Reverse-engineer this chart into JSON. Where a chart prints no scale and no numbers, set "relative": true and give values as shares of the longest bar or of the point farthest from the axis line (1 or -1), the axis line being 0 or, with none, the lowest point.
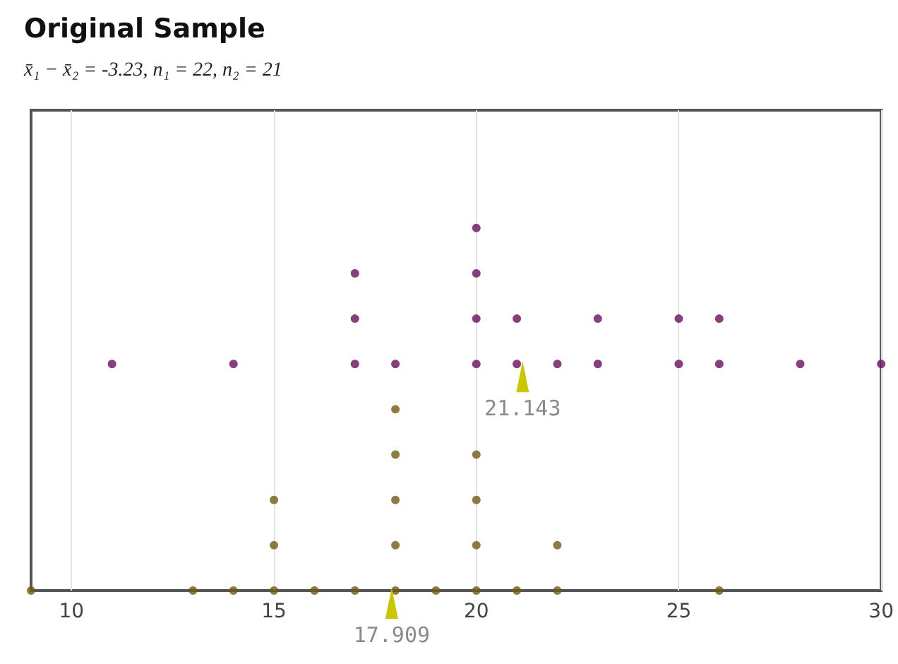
{
  "chart_data": {
    "type": "scatter",
    "title": "Original Sample",
    "subtitle": "x̄₁ − x̄₂ = -3.23, n₁ = 22, n₂ = 21",
    "relative": true,
    "series": [
      {
        "color": "#6b0f5c",
        "x": [
          11,
          14,
          17,
          17,
          17,
          18,
          20,
          20,
          20,
          20,
          21,
          21,
          22,
          23,
          23,
          25,
          25,
          26,
          26,
          28,
          30
        ],
        "values": [
          0.625,
          0.625,
          0.625,
          0.75,
          0.875,
          0.625,
          0.625,
          0.75,
          0.875,
          1,
          0.625,
          0.75,
          0.625,
          0.625,
          0.75,
          0.625,
          0.75,
          0.625,
          0.75,
          0.625,
          0.625
        ]
      },
      {
        "color": "#735a12",
        "x": [
          9,
          13,
          14,
          15,
          15,
          15,
          16,
          17,
          18,
          18,
          18,
          18,
          18,
          19,
          20,
          20,
          20,
          20,
          21,
          22,
          22,
          26
        ],
        "values": [
          0,
          0,
          0,
          0,
          0.125,
          0.25,
          0,
          0,
          0,
          0.125,
          0.25,
          0.375,
          0.5,
          0,
          0,
          0.125,
          0.25,
          0.375,
          0,
          0,
          0.125,
          0
        ]
      }
    ],
    "annotations": [
      {
        "text": "21.143",
        "x": 21.143,
        "y": 0.625
      },
      {
        "text": "17.909",
        "x": 17.909,
        "y": 0
      }
    ],
    "xlim": [
      9,
      30
    ],
    "xticks": [
      10,
      15,
      20,
      25,
      30
    ],
    "tick_labels": "x",
    "grid": "x",
    "marker": "circle"
  }
}
